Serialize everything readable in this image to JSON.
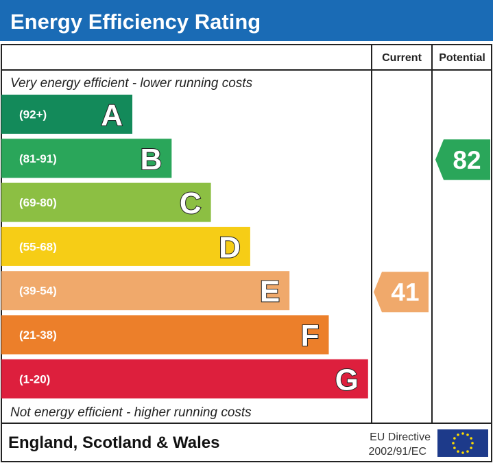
{
  "chart_data": {
    "type": "bar",
    "title": "Energy Efficiency Rating",
    "columns": [
      "Current",
      "Potential"
    ],
    "top_note": "Very energy efficient - lower running costs",
    "bottom_note": "Not energy efficient - higher running costs",
    "bands": [
      {
        "letter": "A",
        "range": "(92+)",
        "color": "#138a5a"
      },
      {
        "letter": "B",
        "range": "(81-91)",
        "color": "#2aa65a"
      },
      {
        "letter": "C",
        "range": "(69-80)",
        "color": "#8cbf43"
      },
      {
        "letter": "D",
        "range": "(55-68)",
        "color": "#f6cd16"
      },
      {
        "letter": "E",
        "range": "(39-54)",
        "color": "#f0a96b"
      },
      {
        "letter": "F",
        "range": "(21-38)",
        "color": "#ec7f2a"
      },
      {
        "letter": "G",
        "range": "(1-20)",
        "color": "#dd1f3d"
      }
    ],
    "current": {
      "value": "41",
      "band": "E"
    },
    "potential": {
      "value": "82",
      "band": "B"
    }
  },
  "footer": {
    "region": "England, Scotland & Wales",
    "directive_line1": "EU Directive",
    "directive_line2": "2002/91/EC",
    "flag_icon": "eu-flag-icon"
  },
  "colors": {
    "title_bar": "#1a6bb5",
    "eu_flag": "#1d3a8a",
    "eu_star": "#ffdd00"
  }
}
